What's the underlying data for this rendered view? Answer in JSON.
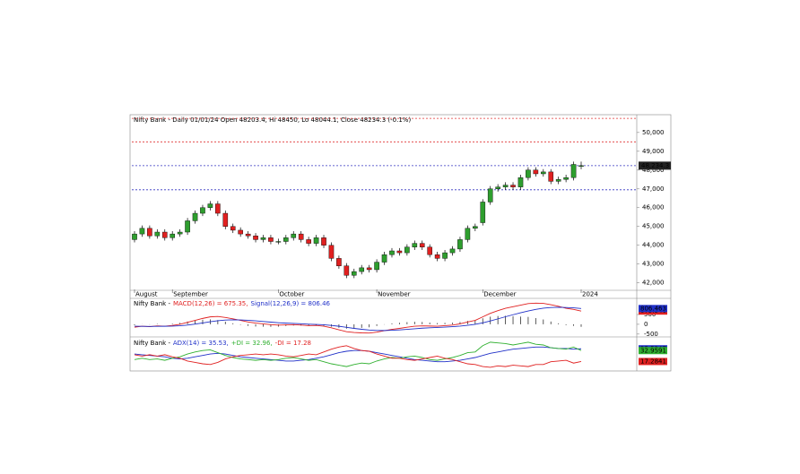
{
  "chart_data": [
    {
      "type": "candlestick",
      "title": "Nifty Bank - Daily 01/01/24 Open 48203.4, Hi 48450, Lo 48044.1, Close 48234.3 (-0.1%)",
      "categories": [
        "August",
        null,
        null,
        null,
        null,
        "September",
        null,
        null,
        null,
        null,
        null,
        null,
        null,
        null,
        null,
        null,
        null,
        null,
        null,
        "October",
        null,
        null,
        null,
        null,
        null,
        null,
        null,
        null,
        null,
        null,
        null,
        null,
        "November",
        null,
        null,
        null,
        null,
        null,
        null,
        null,
        null,
        null,
        null,
        null,
        null,
        null,
        "December",
        null,
        null,
        null,
        null,
        null,
        null,
        null,
        null,
        null,
        null,
        null,
        null,
        "2024"
      ],
      "open": [
        44300,
        44600,
        44900,
        44500,
        44700,
        44400,
        44600,
        44700,
        45300,
        45700,
        46000,
        46200,
        45700,
        45000,
        44800,
        44600,
        44500,
        44300,
        44400,
        44200,
        44200,
        44400,
        44600,
        44300,
        44100,
        44400,
        44000,
        43300,
        42900,
        42400,
        42600,
        42800,
        42700,
        43100,
        43500,
        43700,
        43600,
        43900,
        44100,
        43900,
        43500,
        43300,
        43600,
        43800,
        44300,
        44900,
        45200,
        46300,
        47000,
        47100,
        47200,
        47100,
        47600,
        48000,
        47800,
        47900,
        47400,
        47500,
        47600,
        48203.4
      ],
      "high": [
        44750,
        45050,
        45050,
        44850,
        44850,
        44750,
        44850,
        45450,
        45850,
        46150,
        46350,
        46350,
        45850,
        45150,
        44950,
        44750,
        44650,
        44550,
        44550,
        44350,
        44550,
        44750,
        44750,
        44450,
        44550,
        44550,
        44150,
        43450,
        43050,
        42750,
        42950,
        42950,
        43250,
        43650,
        43850,
        43850,
        44050,
        44250,
        44250,
        44050,
        43650,
        43750,
        43950,
        44450,
        45050,
        45150,
        46450,
        47150,
        47250,
        47350,
        47350,
        47750,
        48150,
        48150,
        48050,
        48050,
        47650,
        47750,
        48450,
        48450
      ],
      "low": [
        44150,
        44450,
        44350,
        44350,
        44250,
        44250,
        44450,
        44550,
        45150,
        45550,
        45850,
        45550,
        44850,
        44650,
        44450,
        44350,
        44150,
        44150,
        44050,
        44050,
        44050,
        44250,
        44150,
        43950,
        43950,
        43850,
        43150,
        42750,
        42250,
        42250,
        42450,
        42550,
        42550,
        42950,
        43350,
        43450,
        43450,
        43750,
        43750,
        43350,
        43150,
        43150,
        43450,
        43650,
        44150,
        44750,
        45050,
        46150,
        46850,
        46950,
        46950,
        46950,
        47450,
        47650,
        47650,
        47250,
        47250,
        47350,
        47450,
        48044.1
      ],
      "close": [
        44600,
        44900,
        44500,
        44700,
        44400,
        44600,
        44700,
        45300,
        45700,
        46000,
        46200,
        45700,
        45000,
        44800,
        44600,
        44500,
        44300,
        44400,
        44200,
        44200,
        44400,
        44600,
        44300,
        44100,
        44400,
        44000,
        43300,
        42900,
        42400,
        42600,
        42800,
        42700,
        43100,
        43500,
        43700,
        43600,
        43900,
        44100,
        43900,
        43500,
        43300,
        43600,
        43800,
        44300,
        44900,
        45000,
        46300,
        47000,
        47100,
        47200,
        47100,
        47600,
        48000,
        47800,
        47900,
        47400,
        47500,
        47600,
        48300,
        48234.3
      ],
      "up_color": "#2e9e2e",
      "down_color": "#e02020",
      "ylim": [
        41650,
        50850
      ],
      "yticks": [
        {
          "value": 42000,
          "label": "42,000"
        },
        {
          "value": 43000,
          "label": "43,000"
        },
        {
          "value": 44000,
          "label": "44,000"
        },
        {
          "value": 45000,
          "label": "45,000"
        },
        {
          "value": 46000,
          "label": "46,000"
        },
        {
          "value": 47000,
          "label": "47,000"
        },
        {
          "value": 48000,
          "label": "48,000"
        },
        {
          "value": 49000,
          "label": "49,000"
        },
        {
          "value": 50000,
          "label": "50,000"
        }
      ],
      "hlines": [
        {
          "value": 50750,
          "color": "#e03030"
        },
        {
          "value": 49500,
          "color": "#e03030"
        },
        {
          "value": 48234,
          "color": "#3030c0"
        },
        {
          "value": 46950,
          "color": "#3030c0"
        }
      ],
      "last_tag": "48,234.3"
    },
    {
      "type": "line",
      "title": "Nifty Bank -",
      "series": [
        {
          "name": "MACD(12,26) = 675.35,",
          "color": "#e02020",
          "tag": "675.346",
          "values": [
            -150,
            -100,
            -120,
            -80,
            -100,
            -60,
            0,
            100,
            200,
            300,
            380,
            400,
            350,
            280,
            200,
            120,
            60,
            20,
            -20,
            -40,
            -30,
            -20,
            -40,
            -70,
            -60,
            -100,
            -180,
            -280,
            -380,
            -420,
            -440,
            -450,
            -400,
            -330,
            -260,
            -210,
            -150,
            -100,
            -80,
            -90,
            -100,
            -70,
            -40,
            20,
            120,
            200,
            380,
            560,
            700,
            820,
            900,
            980,
            1060,
            1080,
            1070,
            1000,
            920,
            820,
            760,
            675.35
          ]
        },
        {
          "name": "Signal(12,26,9) = 806.46",
          "color": "#2030c8",
          "tag": "806.463",
          "values": [
            -100,
            -105,
            -108,
            -102,
            -101,
            -93,
            -74,
            -39,
            9,
            67,
            130,
            184,
            217,
            230,
            224,
            203,
            175,
            144,
            111,
            81,
            59,
            43,
            26,
            7,
            -6,
            -25,
            -56,
            -101,
            -157,
            -210,
            -256,
            -295,
            -316,
            -319,
            -307,
            -288,
            -261,
            -229,
            -199,
            -177,
            -162,
            -144,
            -123,
            -95,
            -52,
            -2,
            74,
            171,
            277,
            386,
            489,
            587,
            682,
            762,
            824,
            859,
            871,
            861,
            841,
            806.46
          ]
        }
      ],
      "histogram": [
        -50,
        5,
        -12,
        22,
        1,
        33,
        74,
        139,
        191,
        233,
        250,
        216,
        133,
        50,
        -24,
        -83,
        -115,
        -124,
        -131,
        -121,
        -89,
        -63,
        -66,
        -77,
        -54,
        -75,
        -124,
        -179,
        -223,
        -210,
        -184,
        -155,
        -84,
        -11,
        47,
        78,
        111,
        129,
        119,
        87,
        62,
        74,
        83,
        115,
        172,
        202,
        306,
        389,
        423,
        434,
        411,
        393,
        378,
        318,
        246,
        141,
        49,
        -41,
        -81,
        -131.11
      ],
      "histogram_color": "#333333",
      "ylim": [
        -600,
        1280
      ],
      "yticks": [
        -500,
        0,
        500
      ]
    },
    {
      "type": "line",
      "title": "Nifty Bank -",
      "series": [
        {
          "name": "ADX(14) = 35.53,",
          "color": "#2030c8",
          "tag": "35.5347",
          "values": [
            28,
            27,
            26,
            25,
            24,
            22,
            21,
            22,
            24,
            26,
            28,
            29,
            28,
            26,
            24,
            23,
            22,
            21,
            20,
            19,
            18,
            18,
            19,
            20,
            22,
            24,
            27,
            30,
            32,
            33,
            33,
            32,
            30,
            28,
            26,
            24,
            22,
            20,
            19,
            18,
            17,
            17,
            18,
            19,
            21,
            23,
            26,
            29,
            31,
            33,
            35,
            36,
            37,
            38,
            38,
            37,
            36,
            36,
            35,
            35.53
          ]
        },
        {
          "name": "+DI = 32.96,",
          "color": "#30b030",
          "tag": "32.9591",
          "values": [
            20,
            22,
            20,
            21,
            19,
            22,
            24,
            28,
            31,
            33,
            34,
            30,
            26,
            23,
            21,
            20,
            19,
            20,
            19,
            20,
            22,
            23,
            21,
            19,
            20,
            17,
            14,
            12,
            10,
            13,
            15,
            14,
            18,
            21,
            23,
            22,
            24,
            25,
            23,
            20,
            19,
            21,
            23,
            26,
            30,
            31,
            40,
            45,
            44,
            43,
            41,
            43,
            45,
            42,
            41,
            37,
            36,
            35,
            38,
            32.96
          ]
        },
        {
          "name": "-DI = 17.28",
          "color": "#e02020",
          "tag": "17.2841",
          "values": [
            27,
            25,
            27,
            25,
            27,
            24,
            22,
            18,
            16,
            14,
            13,
            16,
            21,
            24,
            26,
            27,
            28,
            27,
            28,
            27,
            25,
            24,
            26,
            28,
            27,
            31,
            35,
            38,
            40,
            36,
            33,
            32,
            28,
            25,
            22,
            22,
            20,
            19,
            21,
            23,
            25,
            22,
            20,
            17,
            14,
            13,
            10,
            9,
            11,
            10,
            12,
            11,
            10,
            13,
            13,
            17,
            18,
            19,
            15,
            17.28
          ]
        }
      ],
      "ylim": [
        5,
        50
      ]
    }
  ]
}
